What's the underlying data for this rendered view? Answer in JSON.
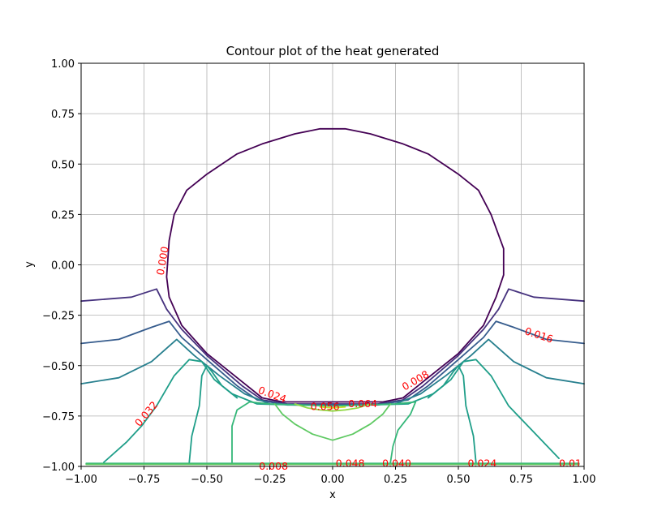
{
  "chart_data": {
    "type": "contour",
    "title": "Contour plot of the heat generated",
    "xlabel": "x",
    "ylabel": "y",
    "xlim": [
      -1.0,
      1.0
    ],
    "ylim": [
      -1.0,
      1.0
    ],
    "grid": true,
    "xticks": [
      "−1.00",
      "−0.75",
      "−0.50",
      "−0.25",
      "0.00",
      "0.25",
      "0.50",
      "0.75",
      "1.00"
    ],
    "yticks": [
      "−1.00",
      "−0.75",
      "−0.50",
      "−0.25",
      "0.00",
      "0.25",
      "0.50",
      "0.75",
      "1.00"
    ],
    "xtick_values": [
      -1.0,
      -0.75,
      -0.5,
      -0.25,
      0.0,
      0.25,
      0.5,
      0.75,
      1.0
    ],
    "ytick_values": [
      -1.0,
      -0.75,
      -0.5,
      -0.25,
      0.0,
      0.25,
      0.5,
      0.75,
      1.0
    ],
    "label_color": "#ff0000",
    "levels": [
      {
        "value": 0.0,
        "color": "#440154",
        "paths": [
          [
            [
              -0.66,
              -0.06
            ],
            [
              -0.65,
              0.12
            ],
            [
              -0.63,
              0.25
            ],
            [
              -0.58,
              0.37
            ],
            [
              -0.5,
              0.45
            ],
            [
              -0.38,
              0.55
            ],
            [
              -0.28,
              0.6
            ],
            [
              -0.15,
              0.65
            ],
            [
              -0.05,
              0.675
            ],
            [
              0.05,
              0.675
            ],
            [
              0.15,
              0.65
            ],
            [
              0.28,
              0.6
            ],
            [
              0.38,
              0.55
            ],
            [
              0.5,
              0.45
            ],
            [
              0.58,
              0.37
            ],
            [
              0.63,
              0.25
            ],
            [
              0.68,
              0.08
            ],
            [
              0.68,
              -0.05
            ],
            [
              0.65,
              -0.16
            ],
            [
              0.6,
              -0.3
            ],
            [
              0.5,
              -0.44
            ],
            [
              0.36,
              -0.58
            ],
            [
              0.28,
              -0.66
            ],
            [
              0.2,
              -0.68
            ],
            [
              0.0,
              -0.68
            ],
            [
              -0.2,
              -0.68
            ],
            [
              -0.28,
              -0.66
            ],
            [
              -0.36,
              -0.58
            ],
            [
              -0.5,
              -0.44
            ],
            [
              -0.6,
              -0.3
            ],
            [
              -0.65,
              -0.16
            ],
            [
              -0.66,
              -0.06
            ]
          ]
        ]
      },
      {
        "value": 0.008,
        "color": "#46327e",
        "paths": [
          [
            [
              -1.0,
              -0.18
            ],
            [
              -0.8,
              -0.16
            ],
            [
              -0.7,
              -0.12
            ],
            [
              -0.66,
              -0.22
            ],
            [
              -0.6,
              -0.32
            ],
            [
              -0.5,
              -0.45
            ],
            [
              -0.36,
              -0.6
            ],
            [
              -0.28,
              -0.67
            ],
            [
              -0.18,
              -0.69
            ],
            [
              0.0,
              -0.69
            ],
            [
              0.18,
              -0.69
            ],
            [
              0.28,
              -0.67
            ],
            [
              0.36,
              -0.6
            ],
            [
              0.5,
              -0.45
            ],
            [
              0.6,
              -0.32
            ],
            [
              0.66,
              -0.22
            ],
            [
              0.7,
              -0.12
            ],
            [
              0.8,
              -0.16
            ],
            [
              1.0,
              -0.18
            ]
          ]
        ]
      },
      {
        "value": 0.016,
        "color": "#365c8d",
        "paths": [
          [
            [
              -1.0,
              -0.39
            ],
            [
              -0.85,
              -0.37
            ],
            [
              -0.72,
              -0.31
            ],
            [
              -0.65,
              -0.28
            ],
            [
              -0.6,
              -0.36
            ],
            [
              -0.5,
              -0.47
            ],
            [
              -0.38,
              -0.6
            ],
            [
              -0.3,
              -0.67
            ],
            [
              -0.18,
              -0.695
            ],
            [
              0.0,
              -0.695
            ],
            [
              0.18,
              -0.695
            ],
            [
              0.3,
              -0.67
            ],
            [
              0.38,
              -0.6
            ],
            [
              0.5,
              -0.47
            ],
            [
              0.6,
              -0.36
            ],
            [
              0.65,
              -0.28
            ],
            [
              0.72,
              -0.31
            ],
            [
              0.85,
              -0.37
            ],
            [
              1.0,
              -0.39
            ]
          ]
        ]
      },
      {
        "value": 0.024,
        "color": "#277f8e",
        "paths": [
          [
            [
              -1.0,
              -0.59
            ],
            [
              -0.85,
              -0.56
            ],
            [
              -0.72,
              -0.48
            ],
            [
              -0.62,
              -0.37
            ],
            [
              -0.55,
              -0.45
            ],
            [
              -0.45,
              -0.55
            ],
            [
              -0.35,
              -0.64
            ],
            [
              -0.25,
              -0.69
            ],
            [
              0.0,
              -0.7
            ],
            [
              0.25,
              -0.69
            ],
            [
              0.35,
              -0.64
            ],
            [
              0.45,
              -0.55
            ],
            [
              0.55,
              -0.45
            ],
            [
              0.62,
              -0.37
            ],
            [
              0.72,
              -0.48
            ],
            [
              0.85,
              -0.56
            ],
            [
              1.0,
              -0.59
            ]
          ]
        ]
      },
      {
        "value": 0.032,
        "color": "#1f9e89",
        "paths": [
          [
            [
              -0.91,
              -0.98
            ],
            [
              -0.82,
              -0.88
            ],
            [
              -0.76,
              -0.8
            ],
            [
              -0.7,
              -0.7
            ],
            [
              -0.63,
              -0.55
            ],
            [
              -0.57,
              -0.47
            ],
            [
              -0.52,
              -0.48
            ],
            [
              -0.47,
              -0.57
            ],
            [
              -0.4,
              -0.64
            ],
            [
              -0.3,
              -0.69
            ],
            [
              0.0,
              -0.7
            ],
            [
              0.3,
              -0.69
            ],
            [
              0.4,
              -0.64
            ],
            [
              0.47,
              -0.57
            ],
            [
              0.52,
              -0.48
            ],
            [
              0.57,
              -0.47
            ],
            [
              0.63,
              -0.55
            ],
            [
              0.7,
              -0.7
            ],
            [
              0.8,
              -0.83
            ],
            [
              0.9,
              -0.96
            ]
          ],
          [
            [
              -0.57,
              -0.98
            ],
            [
              -0.56,
              -0.85
            ],
            [
              -0.53,
              -0.7
            ],
            [
              -0.52,
              -0.55
            ],
            [
              -0.5,
              -0.5
            ],
            [
              -0.48,
              -0.53
            ],
            [
              -0.44,
              -0.6
            ],
            [
              -0.38,
              -0.66
            ]
          ],
          [
            [
              0.38,
              -0.66
            ],
            [
              0.44,
              -0.6
            ],
            [
              0.48,
              -0.53
            ],
            [
              0.5,
              -0.5
            ],
            [
              0.52,
              -0.55
            ],
            [
              0.53,
              -0.7
            ],
            [
              0.56,
              -0.85
            ],
            [
              0.57,
              -0.98
            ]
          ]
        ]
      },
      {
        "value": 0.04,
        "color": "#35b779",
        "paths": [
          [
            [
              -0.4,
              -0.98
            ],
            [
              -0.4,
              -0.8
            ],
            [
              -0.38,
              -0.72
            ],
            [
              -0.33,
              -0.68
            ],
            [
              -0.25,
              -0.69
            ],
            [
              0.0,
              -0.7
            ],
            [
              0.25,
              -0.69
            ],
            [
              0.33,
              -0.68
            ],
            [
              0.31,
              -0.74
            ],
            [
              0.26,
              -0.82
            ],
            [
              0.24,
              -0.9
            ],
            [
              0.23,
              -0.98
            ]
          ],
          [
            [
              -0.98,
              -0.985
            ],
            [
              -0.5,
              -0.985
            ],
            [
              0.0,
              -0.985
            ],
            [
              0.5,
              -0.985
            ],
            [
              0.98,
              -0.985
            ]
          ]
        ]
      },
      {
        "value": 0.048,
        "color": "#5ec962",
        "paths": [
          [
            [
              -0.23,
              -0.69
            ],
            [
              -0.2,
              -0.74
            ],
            [
              -0.15,
              -0.79
            ],
            [
              -0.08,
              -0.84
            ],
            [
              0.0,
              -0.87
            ],
            [
              0.08,
              -0.84
            ],
            [
              0.15,
              -0.79
            ],
            [
              0.2,
              -0.74
            ],
            [
              0.23,
              -0.69
            ]
          ],
          [
            [
              -0.98,
              -0.99
            ],
            [
              0.0,
              -0.99
            ],
            [
              0.98,
              -0.99
            ]
          ]
        ]
      },
      {
        "value": 0.056,
        "color": "#90d743",
        "paths": [
          [
            [
              -0.15,
              -0.69
            ],
            [
              -0.1,
              -0.71
            ],
            [
              -0.05,
              -0.72
            ],
            [
              0.0,
              -0.725
            ],
            [
              0.05,
              -0.72
            ],
            [
              0.1,
              -0.71
            ],
            [
              0.15,
              -0.69
            ]
          ]
        ]
      },
      {
        "value": 0.064,
        "color": "#c8e020",
        "paths": [
          [
            [
              -0.05,
              -0.705
            ],
            [
              0.0,
              -0.71
            ],
            [
              0.05,
              -0.705
            ]
          ]
        ]
      }
    ],
    "contour_labels": [
      {
        "text": "0.000",
        "x": -0.675,
        "y": 0.02,
        "angle": -80
      },
      {
        "text": "0.016",
        "x": 0.82,
        "y": -0.35,
        "angle": 18
      },
      {
        "text": "0.032",
        "x": -0.74,
        "y": -0.74,
        "angle": -50
      },
      {
        "text": "0.008",
        "x": 0.33,
        "y": -0.575,
        "angle": -30
      },
      {
        "text": "0.024",
        "x": -0.24,
        "y": -0.645,
        "angle": 20
      },
      {
        "text": "0.056",
        "x": -0.03,
        "y": -0.705,
        "angle": 0
      },
      {
        "text": "0.064",
        "x": 0.12,
        "y": -0.69,
        "angle": 0
      },
      {
        "text": "0.008",
        "x": -0.235,
        "y": -1.0,
        "angle": 0
      },
      {
        "text": "0.048",
        "x": 0.07,
        "y": -0.985,
        "angle": 0
      },
      {
        "text": "0.040",
        "x": 0.255,
        "y": -0.985,
        "angle": 0
      },
      {
        "text": "0.024",
        "x": 0.595,
        "y": -0.985,
        "angle": 0
      },
      {
        "text": "0.01",
        "x": 0.945,
        "y": -0.985,
        "angle": 0
      }
    ]
  }
}
